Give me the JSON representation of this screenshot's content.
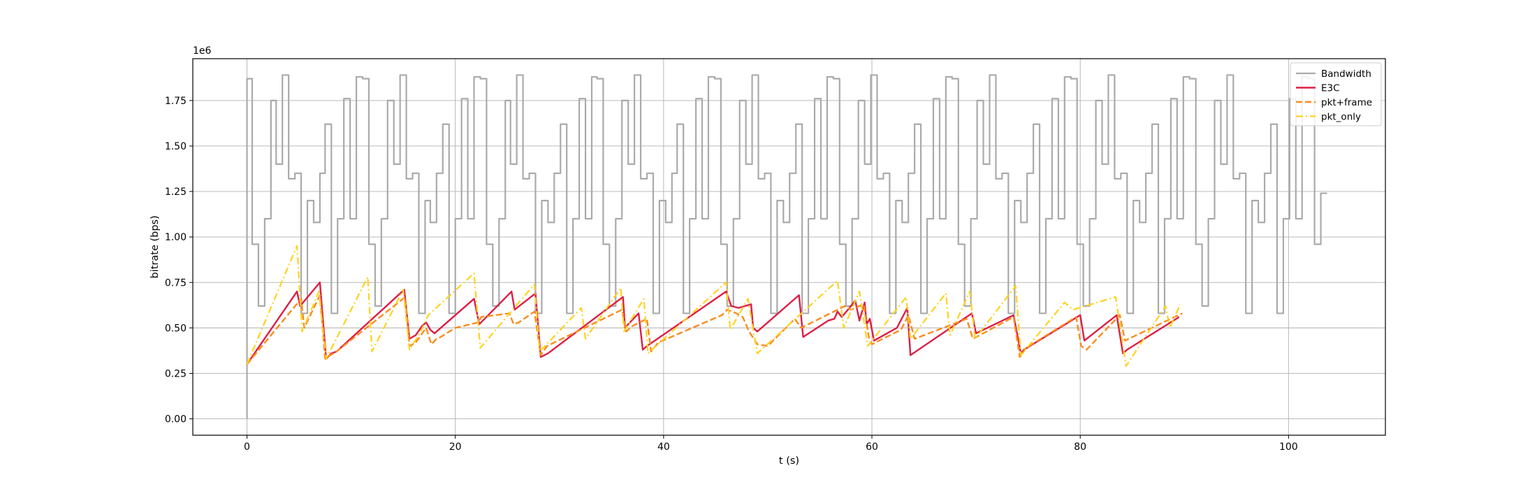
{
  "chart_data": {
    "type": "line",
    "title": "",
    "xlabel": "t (s)",
    "ylabel": "bitrate (bps)",
    "y_offset_label": "1e6",
    "xlim": [
      -5.2,
      109.3
    ],
    "ylim": [
      -0.09,
      1.98
    ],
    "y_scale_note": "values in units of 1e6 bps",
    "x_ticks": [
      0,
      20,
      40,
      60,
      80,
      100
    ],
    "y_ticks": [
      0.0,
      0.25,
      0.5,
      0.75,
      1.0,
      1.25,
      1.5,
      1.75
    ],
    "x_tick_labels": [
      "0",
      "20",
      "40",
      "60",
      "80",
      "100"
    ],
    "y_tick_labels": [
      "0.00",
      "0.25",
      "0.50",
      "0.75",
      "1.00",
      "1.25",
      "1.50",
      "1.75"
    ],
    "grid": true,
    "legend_position": "top-right",
    "colors": {
      "Bandwidth": "#aaaaaa",
      "E3C": "#dc1e46",
      "pkt+frame": "#fa8c1e",
      "pkt_only": "#ffd21e"
    },
    "series": [
      {
        "name": "Bandwidth",
        "style": "step",
        "x": [
          0,
          0,
          0.5,
          1.1,
          1.7,
          2.3,
          2.8,
          3.4,
          4.0,
          4.6,
          5.2,
          5.8,
          6.4,
          7.0,
          7.5,
          8.1,
          8.7,
          9.3,
          9.9,
          10.5,
          11.1,
          11.7,
          12.3,
          12.9,
          13.5,
          14.1,
          14.7,
          15.3,
          15.9,
          16.5,
          17.1,
          17.6,
          18.2,
          18.8,
          19.4,
          20.0,
          20.6,
          21.2,
          21.8,
          22.4,
          23.0,
          23.6,
          24.2,
          24.8,
          25.3,
          25.9,
          26.5,
          27.1,
          27.7,
          28.3,
          28.9,
          29.5,
          30.1,
          30.7,
          31.3,
          31.9,
          32.5,
          33.1,
          33.6,
          34.2,
          34.8,
          35.4,
          36.0,
          36.6,
          37.2,
          37.8,
          38.4,
          39.0,
          39.6,
          40.2,
          40.8,
          41.3,
          41.9,
          42.5,
          43.1,
          43.7,
          44.3,
          44.9,
          45.5,
          46.1,
          46.7,
          47.3,
          47.9,
          48.5,
          49.1,
          49.7,
          50.3,
          50.9,
          51.5,
          52.1,
          52.7,
          53.3,
          53.9,
          54.5,
          55.1,
          55.7,
          56.3,
          56.9,
          57.5,
          58.1,
          58.7,
          59.3,
          59.9,
          60.5,
          61.1,
          61.7,
          62.3,
          62.9,
          63.5,
          64.1,
          64.7,
          65.3,
          65.9,
          66.5,
          67.1,
          67.7,
          68.3,
          68.9,
          69.5,
          70.1,
          70.7,
          71.3,
          71.9,
          72.5,
          73.1,
          73.7,
          74.3,
          74.9,
          75.5,
          76.1,
          76.7,
          77.3,
          77.9,
          78.5,
          79.1,
          79.7,
          80.3,
          80.9,
          81.5,
          82.1,
          82.7,
          83.3,
          83.9,
          84.5,
          85.1,
          85.7,
          86.3,
          86.9,
          87.5,
          88.1,
          88.7,
          89.3,
          89.9,
          90.5,
          91.1,
          91.7,
          92.3,
          92.9,
          93.5,
          94.1,
          94.7,
          95.3,
          95.9,
          96.5,
          97.1,
          97.7,
          98.3,
          98.9,
          99.5,
          100.1,
          100.7,
          101.3,
          101.9,
          102.5,
          103.1
        ],
        "values": [
          0.0,
          1.87,
          0.96,
          0.62,
          1.1,
          1.75,
          1.4,
          1.89,
          1.32,
          1.35,
          0.58,
          1.2,
          1.08,
          1.35,
          1.62,
          0.58,
          1.1,
          1.76,
          1.1,
          1.88,
          1.87,
          0.96,
          0.62,
          1.1,
          1.75,
          1.4,
          1.89,
          1.32,
          1.35,
          0.58,
          1.2,
          1.08,
          1.35,
          1.62,
          0.58,
          1.1,
          1.76,
          1.1,
          1.88,
          1.87,
          0.96,
          0.62,
          1.1,
          1.75,
          1.4,
          1.89,
          1.32,
          1.35,
          0.58,
          1.2,
          1.08,
          1.35,
          1.62,
          0.58,
          1.1,
          1.76,
          1.1,
          1.88,
          1.87,
          0.96,
          0.62,
          1.1,
          1.75,
          1.4,
          1.89,
          1.32,
          1.35,
          0.58,
          1.2,
          1.08,
          1.35,
          1.62,
          0.58,
          1.1,
          1.76,
          1.1,
          1.88,
          1.87,
          0.96,
          0.62,
          1.1,
          1.75,
          1.4,
          1.89,
          1.32,
          1.35,
          0.58,
          1.2,
          1.08,
          1.35,
          1.62,
          0.58,
          1.1,
          1.76,
          1.1,
          1.88,
          1.87,
          0.96,
          0.62,
          1.1,
          1.75,
          1.4,
          1.89,
          1.32,
          1.35,
          0.58,
          1.2,
          1.08,
          1.35,
          1.62,
          0.58,
          1.1,
          1.76,
          1.1,
          1.88,
          1.87,
          0.96,
          0.62,
          1.1,
          1.75,
          1.4,
          1.89,
          1.32,
          1.35,
          0.58,
          1.2,
          1.08,
          1.35,
          1.62,
          0.58,
          1.1,
          1.76,
          1.1,
          1.88,
          1.87,
          0.96,
          0.62,
          1.1,
          1.75,
          1.4,
          1.89,
          1.32,
          1.35,
          0.58,
          1.2,
          1.08,
          1.35,
          1.62,
          0.58,
          1.1,
          1.76,
          1.1,
          1.88,
          1.87,
          0.96,
          0.62,
          1.1,
          1.75,
          1.4,
          1.89,
          1.32,
          1.35,
          0.58,
          1.2,
          1.08,
          1.35,
          1.62,
          0.58,
          1.1,
          1.76,
          1.1,
          1.88,
          1.87,
          0.96,
          1.24
        ]
      },
      {
        "name": "E3C",
        "style": "solid",
        "x": [
          0,
          4.8,
          5.1,
          7.0,
          7.6,
          8.1,
          8.6,
          15.1,
          15.6,
          16.2,
          16.8,
          17.2,
          17.6,
          18.0,
          21.8,
          22.3,
          25.4,
          25.7,
          27.7,
          28.2,
          28.9,
          36.1,
          36.3,
          36.6,
          37.6,
          38.0,
          38.4,
          46.0,
          46.5,
          47.2,
          48.4,
          48.6,
          49.0,
          53.0,
          53.4,
          55.8,
          56.4,
          56.7,
          57.1,
          57.7,
          58.4,
          58.8,
          59.3,
          59.5,
          59.8,
          60.2,
          62.4,
          63.4,
          63.7,
          69.6,
          70.0,
          73.6,
          74.3,
          74.6,
          80.0,
          80.4,
          83.5,
          84.1,
          84.5,
          89.5
        ],
        "values": [
          0.3,
          0.7,
          0.62,
          0.75,
          0.33,
          0.36,
          0.37,
          0.71,
          0.44,
          0.46,
          0.51,
          0.53,
          0.49,
          0.47,
          0.66,
          0.52,
          0.7,
          0.6,
          0.69,
          0.34,
          0.36,
          0.67,
          0.5,
          0.52,
          0.58,
          0.38,
          0.4,
          0.7,
          0.62,
          0.61,
          0.63,
          0.5,
          0.48,
          0.68,
          0.45,
          0.54,
          0.55,
          0.59,
          0.56,
          0.6,
          0.65,
          0.54,
          0.64,
          0.52,
          0.55,
          0.43,
          0.5,
          0.61,
          0.35,
          0.58,
          0.47,
          0.57,
          0.36,
          0.38,
          0.57,
          0.43,
          0.57,
          0.36,
          0.38,
          0.56
        ]
      },
      {
        "name": "pkt+frame",
        "style": "dashed",
        "x": [
          0,
          5.2,
          5.5,
          7.0,
          7.5,
          8.0,
          8.6,
          15.2,
          15.6,
          16.2,
          17.2,
          17.7,
          18.2,
          18.6,
          20.0,
          22.2,
          22.5,
          25.2,
          25.6,
          26.1,
          27.6,
          28.2,
          28.8,
          36.0,
          36.4,
          37.0,
          38.4,
          38.8,
          39.5,
          45.6,
          46.1,
          47.0,
          47.6,
          48.2,
          49.0,
          50.0,
          52.6,
          53.2,
          57.4,
          58.0,
          59.2,
          59.7,
          60.0,
          62.8,
          63.5,
          64.1,
          69.1,
          69.7,
          73.6,
          74.2,
          74.8,
          79.6,
          80.1,
          80.6,
          83.8,
          84.3,
          89.8
        ],
        "values": [
          0.3,
          0.66,
          0.5,
          0.68,
          0.33,
          0.35,
          0.37,
          0.67,
          0.4,
          0.42,
          0.5,
          0.41,
          0.44,
          0.45,
          0.5,
          0.53,
          0.56,
          0.58,
          0.52,
          0.53,
          0.59,
          0.35,
          0.4,
          0.6,
          0.48,
          0.51,
          0.55,
          0.37,
          0.42,
          0.57,
          0.6,
          0.58,
          0.56,
          0.48,
          0.41,
          0.4,
          0.55,
          0.5,
          0.62,
          0.6,
          0.63,
          0.45,
          0.41,
          0.49,
          0.57,
          0.44,
          0.55,
          0.44,
          0.56,
          0.34,
          0.39,
          0.56,
          0.4,
          0.38,
          0.57,
          0.43,
          0.58
        ]
      },
      {
        "name": "pkt_only",
        "style": "dashdot",
        "x": [
          0,
          4.8,
          5.3,
          6.9,
          7.6,
          11.6,
          12.0,
          15.0,
          15.6,
          16.6,
          17.4,
          21.8,
          22.4,
          27.6,
          28.1,
          32.1,
          32.5,
          35.9,
          36.2,
          38.1,
          38.5,
          46.0,
          46.4,
          48.1,
          49.0,
          56.7,
          57.3,
          58.8,
          59.6,
          63.3,
          63.7,
          67.1,
          67.5,
          69.4,
          69.9,
          73.8,
          74.3,
          78.5,
          79.3,
          83.4,
          84.4,
          88.2,
          88.6,
          89.6
        ],
        "values": [
          0.3,
          0.95,
          0.48,
          0.7,
          0.33,
          0.78,
          0.37,
          0.71,
          0.38,
          0.47,
          0.57,
          0.8,
          0.39,
          0.74,
          0.37,
          0.61,
          0.44,
          0.72,
          0.48,
          0.66,
          0.36,
          0.75,
          0.49,
          0.66,
          0.36,
          0.76,
          0.5,
          0.7,
          0.4,
          0.67,
          0.44,
          0.69,
          0.46,
          0.7,
          0.44,
          0.73,
          0.35,
          0.64,
          0.6,
          0.67,
          0.29,
          0.62,
          0.5,
          0.63
        ]
      }
    ]
  }
}
